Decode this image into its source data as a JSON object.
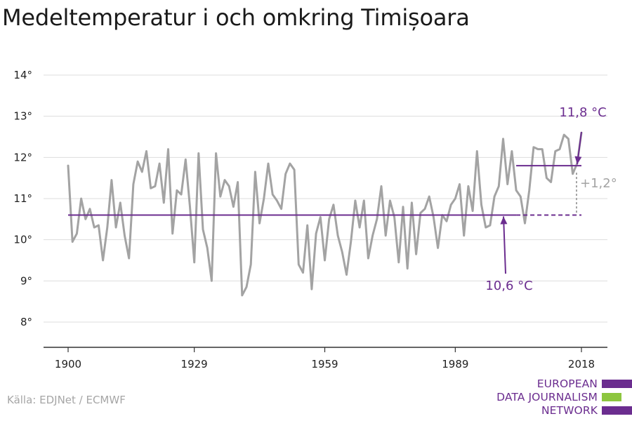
{
  "title": "Medeltemperatur i och omkring Timișoara",
  "source": "Källa: EDJNet / ECMWF",
  "logo": {
    "lines": [
      "EUROPEAN",
      "DATA JOURNALISM",
      "NETWORK"
    ],
    "colors": {
      "text": "#6b2d8f",
      "bar_top": "#6b2d8f",
      "bar_mid": "#8dc63f",
      "bar_bottom": "#6b2d8f"
    }
  },
  "colors": {
    "series": "#a3a3a3",
    "reference": "#6b2d8f",
    "grid": "#dddddd",
    "axis": "#333333",
    "text": "#222222",
    "delta": "#a3a3a3"
  },
  "chart_data": {
    "type": "line",
    "title": "Medeltemperatur i och omkring Timișoara",
    "xlabel": "",
    "ylabel": "",
    "xlim": [
      1900,
      2019
    ],
    "ylim": [
      7.7,
      14.2
    ],
    "x_ticks": [
      1900,
      1929,
      1959,
      1989,
      2018
    ],
    "y_ticks": [
      8,
      9,
      10,
      11,
      12,
      13,
      14
    ],
    "y_tick_labels": [
      "8°",
      "9°",
      "10°",
      "11°",
      "12°",
      "13°",
      "14°"
    ],
    "grid": true,
    "series": [
      {
        "x_start": 1900,
        "x_end": 2018,
        "values": [
          11.8,
          9.95,
          10.15,
          11.0,
          10.5,
          10.75,
          10.3,
          10.35,
          9.5,
          10.3,
          11.45,
          10.3,
          10.9,
          10.1,
          9.55,
          11.35,
          11.9,
          11.65,
          12.15,
          11.25,
          11.3,
          11.85,
          10.9,
          12.2,
          10.15,
          11.2,
          11.1,
          11.95,
          10.8,
          9.45,
          12.1,
          10.25,
          9.8,
          9.0,
          12.1,
          11.05,
          11.45,
          11.3,
          10.8,
          11.4,
          8.65,
          8.85,
          9.4,
          11.65,
          10.4,
          11.0,
          11.85,
          11.1,
          10.95,
          10.75,
          11.6,
          11.85,
          11.7,
          9.4,
          9.2,
          10.35,
          8.8,
          10.15,
          10.55,
          9.5,
          10.5,
          10.85,
          10.1,
          9.7,
          9.15,
          9.95,
          10.95,
          10.3,
          10.95,
          9.55,
          10.1,
          10.5,
          11.3,
          10.1,
          10.95,
          10.55,
          9.45,
          10.8,
          9.3,
          10.9,
          9.65,
          10.65,
          10.75,
          11.05,
          10.55,
          9.8,
          10.6,
          10.45,
          10.85,
          11.0,
          11.35,
          10.1,
          11.3,
          10.7,
          12.15,
          10.85,
          10.3,
          10.35,
          11.05,
          11.3,
          12.45,
          11.35,
          12.15,
          11.2,
          11.05,
          10.4,
          11.2,
          12.25,
          12.2,
          12.2,
          11.5,
          11.4,
          12.15,
          12.2,
          12.55,
          12.45,
          11.6,
          11.85,
          12.6
        ]
      }
    ],
    "reference_lines": [
      {
        "label": "10,6 °C",
        "value": 10.6,
        "x_from": 1900,
        "x_to": 2003,
        "dashed_to": 2018
      },
      {
        "label": "11,8 °C",
        "value": 11.8,
        "x_from": 2003,
        "x_to": 2018
      }
    ],
    "annotations": [
      {
        "text": "11,8 °C",
        "color": "purple"
      },
      {
        "text": "10,6 °C",
        "color": "purple"
      },
      {
        "text": "+1,2°",
        "color": "grey"
      }
    ]
  }
}
